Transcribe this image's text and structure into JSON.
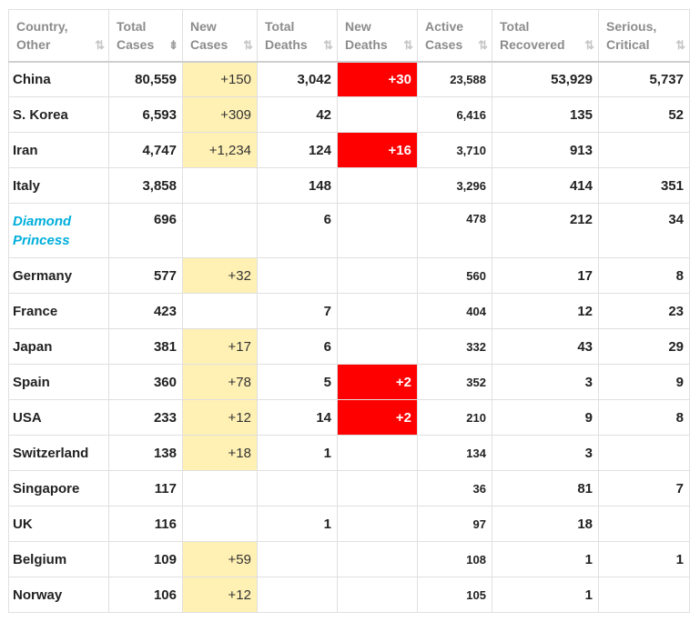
{
  "headers": [
    {
      "line1": "Country,",
      "line2": "Other"
    },
    {
      "line1": "Total",
      "line2": "Cases"
    },
    {
      "line1": "New",
      "line2": "Cases"
    },
    {
      "line1": "Total",
      "line2": "Deaths"
    },
    {
      "line1": "New",
      "line2": "Deaths"
    },
    {
      "line1": "Active",
      "line2": "Cases"
    },
    {
      "line1": "Total",
      "line2": "Recovered"
    },
    {
      "line1": "Serious,",
      "line2": "Critical"
    }
  ],
  "sort_icon": "⇅",
  "sort_active_icon": "⇟",
  "colors": {
    "new_cases_highlight": "#fff0b3",
    "new_deaths_highlight": "#ff0000",
    "link": "#00aedb"
  },
  "rows": [
    {
      "country": "China",
      "total_cases": "80,559",
      "new_cases": "+150",
      "total_deaths": "3,042",
      "new_deaths": "+30",
      "active_cases": "23,588",
      "total_recovered": "53,929",
      "serious_critical": "5,737"
    },
    {
      "country": "S. Korea",
      "total_cases": "6,593",
      "new_cases": "+309",
      "total_deaths": "42",
      "new_deaths": "",
      "active_cases": "6,416",
      "total_recovered": "135",
      "serious_critical": "52"
    },
    {
      "country": "Iran",
      "total_cases": "4,747",
      "new_cases": "+1,234",
      "total_deaths": "124",
      "new_deaths": "+16",
      "active_cases": "3,710",
      "total_recovered": "913",
      "serious_critical": ""
    },
    {
      "country": "Italy",
      "total_cases": "3,858",
      "new_cases": "",
      "total_deaths": "148",
      "new_deaths": "",
      "active_cases": "3,296",
      "total_recovered": "414",
      "serious_critical": "351"
    },
    {
      "country": "Diamond Princess",
      "total_cases": "696",
      "new_cases": "",
      "total_deaths": "6",
      "new_deaths": "",
      "active_cases": "478",
      "total_recovered": "212",
      "serious_critical": "34",
      "is_link": true
    },
    {
      "country": "Germany",
      "total_cases": "577",
      "new_cases": "+32",
      "total_deaths": "",
      "new_deaths": "",
      "active_cases": "560",
      "total_recovered": "17",
      "serious_critical": "8"
    },
    {
      "country": "France",
      "total_cases": "423",
      "new_cases": "",
      "total_deaths": "7",
      "new_deaths": "",
      "active_cases": "404",
      "total_recovered": "12",
      "serious_critical": "23"
    },
    {
      "country": "Japan",
      "total_cases": "381",
      "new_cases": "+17",
      "total_deaths": "6",
      "new_deaths": "",
      "active_cases": "332",
      "total_recovered": "43",
      "serious_critical": "29"
    },
    {
      "country": "Spain",
      "total_cases": "360",
      "new_cases": "+78",
      "total_deaths": "5",
      "new_deaths": "+2",
      "active_cases": "352",
      "total_recovered": "3",
      "serious_critical": "9"
    },
    {
      "country": "USA",
      "total_cases": "233",
      "new_cases": "+12",
      "total_deaths": "14",
      "new_deaths": "+2",
      "active_cases": "210",
      "total_recovered": "9",
      "serious_critical": "8"
    },
    {
      "country": "Switzerland",
      "total_cases": "138",
      "new_cases": "+18",
      "total_deaths": "1",
      "new_deaths": "",
      "active_cases": "134",
      "total_recovered": "3",
      "serious_critical": ""
    },
    {
      "country": "Singapore",
      "total_cases": "117",
      "new_cases": "",
      "total_deaths": "",
      "new_deaths": "",
      "active_cases": "36",
      "total_recovered": "81",
      "serious_critical": "7"
    },
    {
      "country": "UK",
      "total_cases": "116",
      "new_cases": "",
      "total_deaths": "1",
      "new_deaths": "",
      "active_cases": "97",
      "total_recovered": "18",
      "serious_critical": ""
    },
    {
      "country": "Belgium",
      "total_cases": "109",
      "new_cases": "+59",
      "total_deaths": "",
      "new_deaths": "",
      "active_cases": "108",
      "total_recovered": "1",
      "serious_critical": "1"
    },
    {
      "country": "Norway",
      "total_cases": "106",
      "new_cases": "+12",
      "total_deaths": "",
      "new_deaths": "",
      "active_cases": "105",
      "total_recovered": "1",
      "serious_critical": ""
    }
  ]
}
